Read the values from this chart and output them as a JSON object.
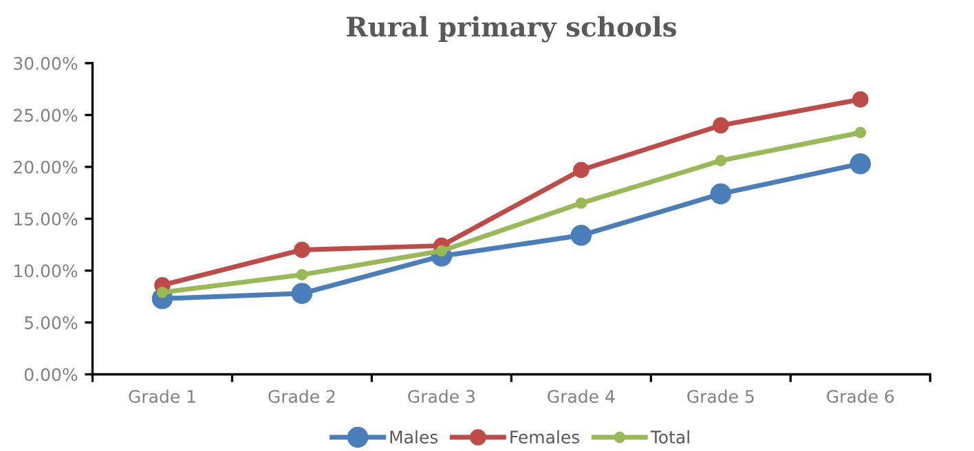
{
  "chart_data": {
    "type": "line",
    "title": "Rural primary schools",
    "categories": [
      "Grade 1",
      "Grade 2",
      "Grade 3",
      "Grade 4",
      "Grade 5",
      "Grade 6"
    ],
    "series": [
      {
        "name": "Males",
        "color": "#4a7ebb",
        "values": [
          7.3,
          7.8,
          11.4,
          13.4,
          17.4,
          20.3
        ]
      },
      {
        "name": "Females",
        "color": "#be4b48",
        "values": [
          8.6,
          12.0,
          12.4,
          19.7,
          24.0,
          26.5
        ]
      },
      {
        "name": "Total",
        "color": "#98b954",
        "values": [
          7.9,
          9.6,
          11.9,
          16.5,
          20.6,
          23.3
        ]
      }
    ],
    "ylim": [
      0,
      30
    ],
    "yticks": [
      {
        "value": 0,
        "label": "0.00%"
      },
      {
        "value": 5,
        "label": "5.00%"
      },
      {
        "value": 10,
        "label": "10.00%"
      },
      {
        "value": 15,
        "label": "15.00%"
      },
      {
        "value": 20,
        "label": "20.00%"
      },
      {
        "value": 25,
        "label": "25.00%"
      },
      {
        "value": 30,
        "label": "30.00%"
      }
    ],
    "grid": false,
    "legend": "bottom",
    "marker": "circle",
    "line_style": "solid"
  }
}
